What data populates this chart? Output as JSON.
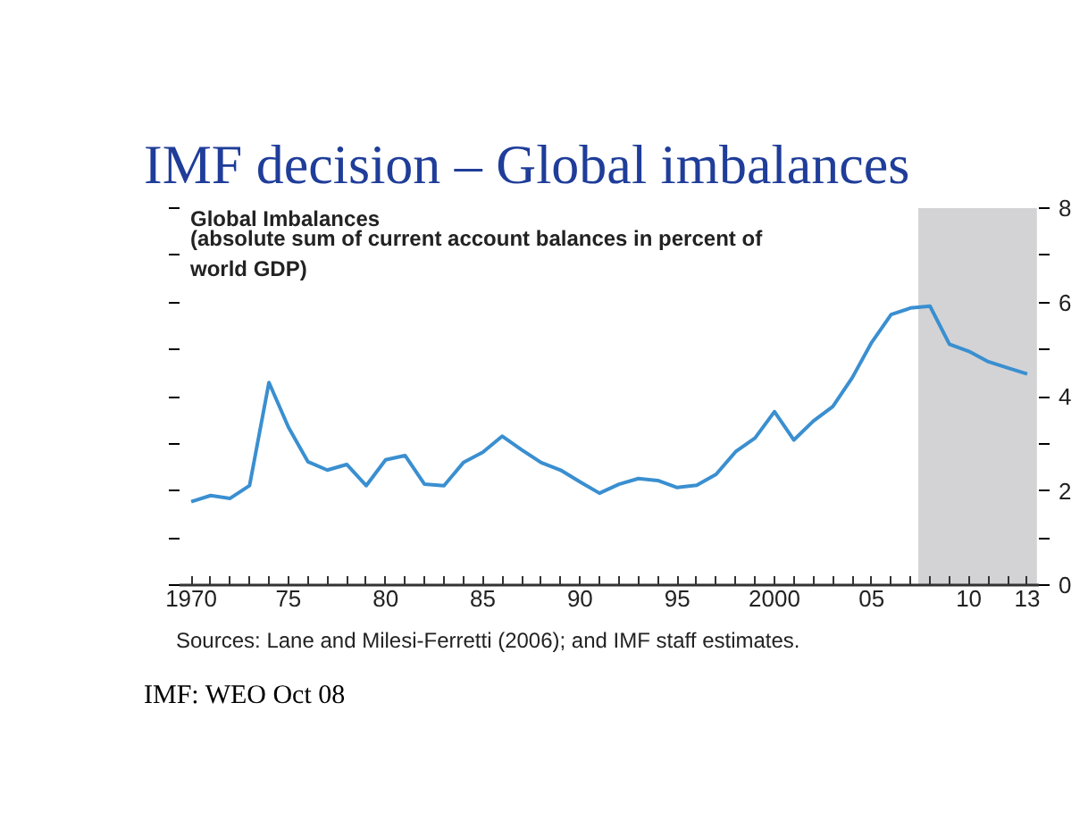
{
  "chart_data": {
    "type": "line",
    "title": "IMF decision – Global imbalances",
    "subtitle": "Global Imbalances",
    "annotations": [
      "(absolute sum of current account balances in percent of world GDP)",
      "Sources: Lane and Milesi-Ferretti (2006); and IMF staff estimates.",
      "IMF: WEO Oct 08"
    ],
    "x": [
      1970,
      1971,
      1972,
      1973,
      1974,
      1975,
      1976,
      1977,
      1978,
      1979,
      1980,
      1981,
      1982,
      1983,
      1984,
      1985,
      1986,
      1987,
      1988,
      1989,
      1990,
      1991,
      1992,
      1993,
      1994,
      1995,
      1996,
      1997,
      1998,
      1999,
      2000,
      2001,
      2002,
      2003,
      2004,
      2005,
      2006,
      2007,
      2008,
      2009,
      2010,
      2011,
      2012,
      2013
    ],
    "series": [
      {
        "color": "#3a8fd0",
        "values": [
          1.77,
          1.9,
          1.84,
          2.11,
          4.3,
          3.35,
          2.62,
          2.44,
          2.56,
          2.11,
          2.66,
          2.75,
          2.14,
          2.11,
          2.6,
          2.82,
          3.16,
          2.87,
          2.6,
          2.44,
          2.19,
          1.95,
          2.14,
          2.26,
          2.22,
          2.07,
          2.12,
          2.35,
          2.83,
          3.12,
          3.68,
          3.08,
          3.48,
          3.79,
          4.4,
          5.15,
          5.74,
          5.88,
          5.92,
          5.11,
          4.96,
          4.74,
          4.61,
          4.48
        ]
      }
    ],
    "xlim": [
      1969.4,
      2013.6
    ],
    "ylim": [
      0,
      8
    ],
    "xticks": [
      {
        "value": 1970,
        "label": "1970"
      },
      {
        "value": 1971,
        "label": null
      },
      {
        "value": 1972,
        "label": null
      },
      {
        "value": 1973,
        "label": null
      },
      {
        "value": 1974,
        "label": null
      },
      {
        "value": 1975,
        "label": "75"
      },
      {
        "value": 1976,
        "label": null
      },
      {
        "value": 1977,
        "label": null
      },
      {
        "value": 1978,
        "label": null
      },
      {
        "value": 1979,
        "label": null
      },
      {
        "value": 1980,
        "label": "80"
      },
      {
        "value": 1981,
        "label": null
      },
      {
        "value": 1982,
        "label": null
      },
      {
        "value": 1983,
        "label": null
      },
      {
        "value": 1984,
        "label": null
      },
      {
        "value": 1985,
        "label": "85"
      },
      {
        "value": 1986,
        "label": null
      },
      {
        "value": 1987,
        "label": null
      },
      {
        "value": 1988,
        "label": null
      },
      {
        "value": 1989,
        "label": null
      },
      {
        "value": 1990,
        "label": "90"
      },
      {
        "value": 1991,
        "label": null
      },
      {
        "value": 1992,
        "label": null
      },
      {
        "value": 1993,
        "label": null
      },
      {
        "value": 1994,
        "label": null
      },
      {
        "value": 1995,
        "label": "95"
      },
      {
        "value": 1996,
        "label": null
      },
      {
        "value": 1997,
        "label": null
      },
      {
        "value": 1998,
        "label": null
      },
      {
        "value": 1999,
        "label": null
      },
      {
        "value": 2000,
        "label": "2000"
      },
      {
        "value": 2001,
        "label": null
      },
      {
        "value": 2002,
        "label": null
      },
      {
        "value": 2003,
        "label": null
      },
      {
        "value": 2004,
        "label": null
      },
      {
        "value": 2005,
        "label": "05"
      },
      {
        "value": 2006,
        "label": null
      },
      {
        "value": 2007,
        "label": null
      },
      {
        "value": 2008,
        "label": null
      },
      {
        "value": 2009,
        "label": null
      },
      {
        "value": 2010,
        "label": "10"
      },
      {
        "value": 2011,
        "label": null
      },
      {
        "value": 2012,
        "label": null
      },
      {
        "value": 2013,
        "label": "13"
      }
    ],
    "yticks": [
      0,
      {
        "value": 1,
        "label": null
      },
      2,
      {
        "value": 3,
        "label": null
      },
      4,
      {
        "value": 5,
        "label": null
      },
      6,
      {
        "value": 7,
        "label": null
      },
      8
    ],
    "bands": [
      {
        "axis": "x",
        "from": 2007.4,
        "to": 2013.5,
        "color": "#d3d3d5"
      }
    ],
    "grid": false,
    "marker": "none",
    "line_style": "solid"
  }
}
